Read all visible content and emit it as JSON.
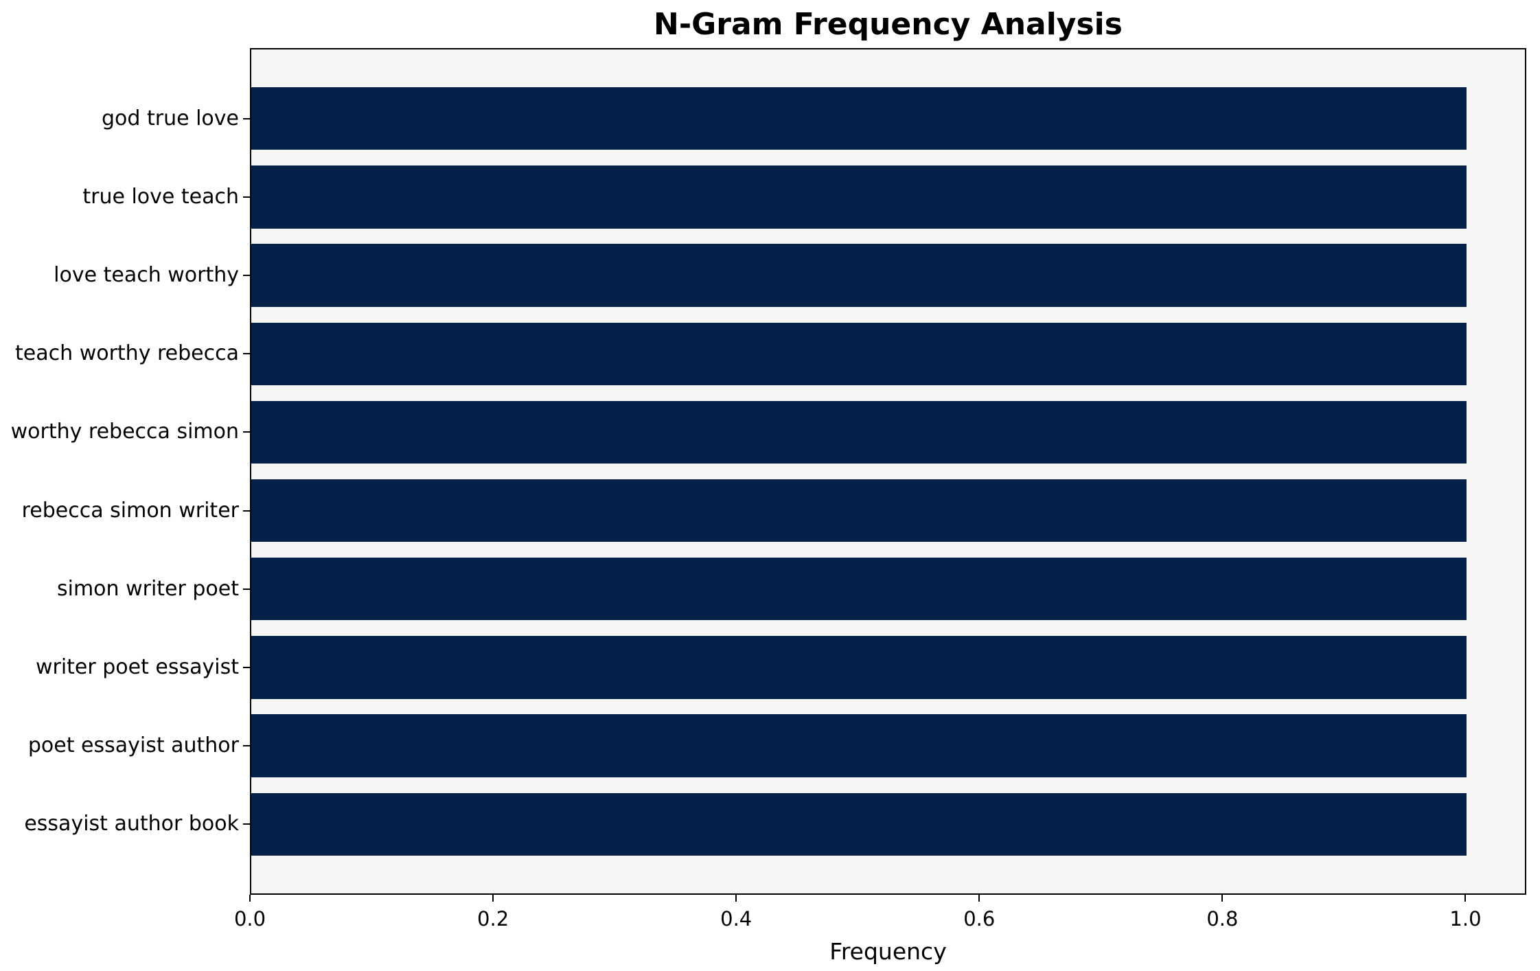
{
  "figure": {
    "background": "#ffffff"
  },
  "chart_data": {
    "type": "bar",
    "orientation": "horizontal",
    "title": "N-Gram Frequency Analysis",
    "xlabel": "Frequency",
    "ylabel": "",
    "categories": [
      "god true love",
      "true love teach",
      "love teach worthy",
      "teach worthy rebecca",
      "worthy rebecca simon",
      "rebecca simon writer",
      "simon writer poet",
      "writer poet essayist",
      "poet essayist author",
      "essayist author book"
    ],
    "values": [
      1.0,
      1.0,
      1.0,
      1.0,
      1.0,
      1.0,
      1.0,
      1.0,
      1.0,
      1.0
    ],
    "xlim": [
      0,
      1.05
    ],
    "xticks": {
      "values": [
        0.0,
        0.2,
        0.4,
        0.6,
        0.8,
        1.0
      ],
      "labels": [
        "0.0",
        "0.2",
        "0.4",
        "0.6",
        "0.8",
        "1.0"
      ]
    },
    "grid": false,
    "legend": null,
    "colors": {
      "bar": "#042149",
      "axes_background": "#f5f5f6",
      "figure_background": "#ffffff",
      "spine": "#000000",
      "text": "#000000"
    }
  }
}
